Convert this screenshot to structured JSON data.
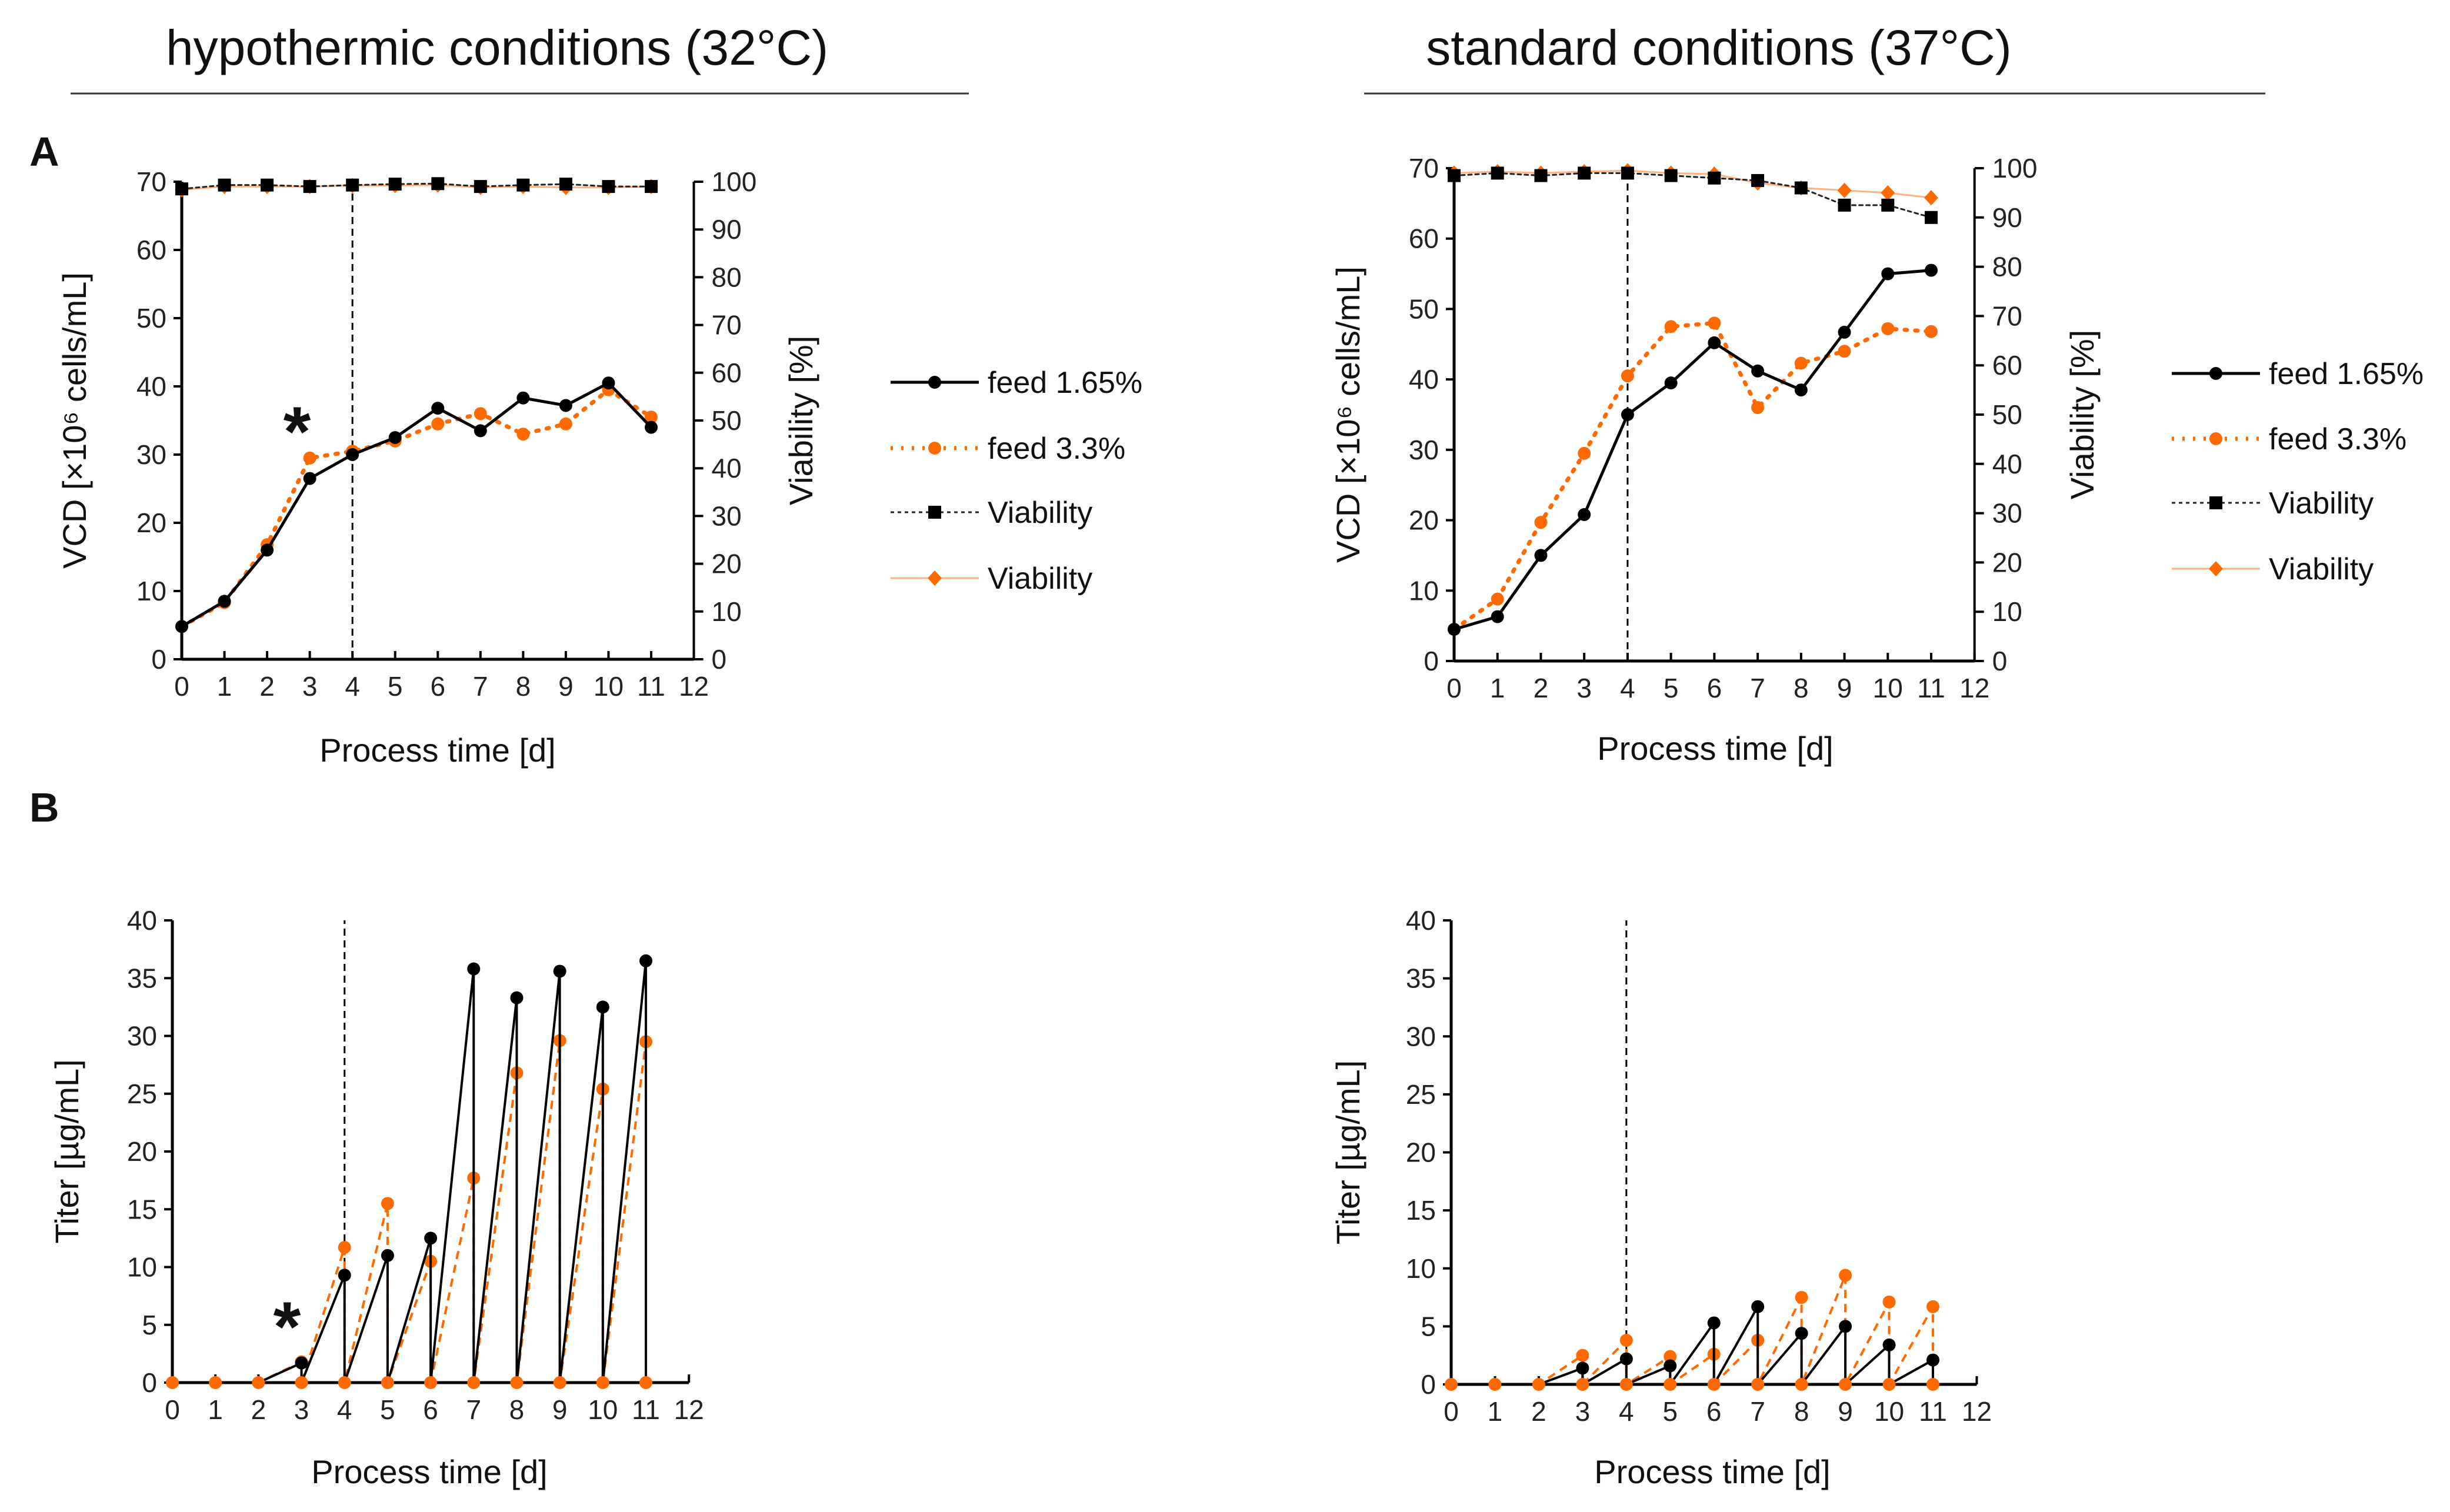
{
  "titles": {
    "left": "hypothermic conditions (32°C)",
    "right": "standard conditions (37°C)"
  },
  "panel_labels": {
    "a": "A",
    "b": "B"
  },
  "annotations": {
    "asterisk": "*"
  },
  "legend": [
    "feed 1.65%",
    "feed 3.3%",
    "Viability",
    "Viability"
  ],
  "colors": {
    "black": "#000000",
    "orange": "#ff6a00",
    "light_orange": "#ffb27f"
  },
  "chart_data": [
    {
      "id": "A_left",
      "type": "line",
      "xlabel": "Process time [d]",
      "ylabel": "VCD [×10⁶ cells/mL]",
      "y2label": "Viability [%]",
      "xlim": [
        0,
        12
      ],
      "ylim": [
        0,
        70
      ],
      "y2lim": [
        0,
        100
      ],
      "yticks": [
        0,
        10,
        20,
        30,
        40,
        50,
        60,
        70
      ],
      "y2ticks": [
        0,
        10,
        20,
        30,
        40,
        50,
        60,
        70,
        80,
        90,
        100
      ],
      "x": [
        0,
        1,
        2,
        3,
        4,
        5,
        6,
        7,
        8,
        9,
        10,
        11
      ],
      "vline_x": 4,
      "series": [
        {
          "name": "feed 1.65%",
          "axis": "left",
          "values": [
            4.8,
            8.5,
            16,
            26.5,
            30,
            32.5,
            36.8,
            33.5,
            38.3,
            37.2,
            40.5,
            34
          ]
        },
        {
          "name": "feed 3.3%",
          "axis": "left",
          "values": [
            4.8,
            8.3,
            16.8,
            29.5,
            30.5,
            32,
            34.5,
            36,
            33,
            34.5,
            39.5,
            35.5
          ]
        },
        {
          "name": "Viability",
          "axis": "right",
          "values": [
            98.5,
            99.3,
            99.3,
            99,
            99.3,
            99.5,
            99.6,
            99,
            99.3,
            99.5,
            99,
            99
          ]
        },
        {
          "name": "Viability",
          "axis": "right",
          "values": [
            98.3,
            99,
            99,
            99,
            99.2,
            99.2,
            99.3,
            98.8,
            99,
            98.8,
            98.8,
            99
          ]
        }
      ]
    },
    {
      "id": "A_right",
      "type": "line",
      "xlabel": "Process time [d]",
      "ylabel": "VCD [×10⁶ cells/mL]",
      "y2label": "Viability [%]",
      "xlim": [
        0,
        12
      ],
      "ylim": [
        0,
        70
      ],
      "y2lim": [
        0,
        100
      ],
      "yticks": [
        0,
        10,
        20,
        30,
        40,
        50,
        60,
        70
      ],
      "y2ticks": [
        0,
        10,
        20,
        30,
        40,
        50,
        60,
        70,
        80,
        90,
        100
      ],
      "x": [
        0,
        1,
        2,
        3,
        4,
        5,
        6,
        7,
        8,
        9,
        10,
        11
      ],
      "vline_x": 4,
      "series": [
        {
          "name": "feed 1.65%",
          "axis": "left",
          "values": [
            4.5,
            6.3,
            15,
            20.8,
            35,
            39.5,
            45.2,
            41.2,
            38.5,
            46.7,
            55,
            55.5
          ]
        },
        {
          "name": "feed 3.3%",
          "axis": "left",
          "values": [
            4.5,
            8.8,
            19.7,
            29.5,
            40.5,
            47.5,
            48,
            36,
            42.3,
            44,
            47.2,
            46.8
          ]
        },
        {
          "name": "Viability",
          "axis": "right",
          "values": [
            98.5,
            99,
            98.5,
            99,
            99,
            98.5,
            98,
            97.5,
            96,
            92.5,
            92.5,
            90
          ]
        },
        {
          "name": "Viability",
          "axis": "right",
          "values": [
            99,
            99.3,
            99,
            99.3,
            99.5,
            99,
            98.8,
            97,
            96,
            95.5,
            95,
            94
          ]
        }
      ]
    },
    {
      "id": "B_left",
      "type": "line",
      "xlabel": "Process time [d]",
      "ylabel": "Titer [µg/mL]",
      "xlim": [
        0,
        12
      ],
      "ylim": [
        0,
        40
      ],
      "yticks": [
        0,
        5,
        10,
        15,
        20,
        25,
        30,
        35,
        40
      ],
      "x": [
        0,
        1,
        2,
        3,
        4,
        5,
        6,
        7,
        8,
        9,
        10,
        11
      ],
      "vline_x": 4,
      "note": "sawtooth: value before medium exchange, then 0 after",
      "series": [
        {
          "name": "feed 1.65%",
          "values": [
            0,
            0,
            0,
            1.7,
            9.3,
            11,
            12.5,
            35.8,
            33.3,
            35.6,
            32.5,
            36.5
          ]
        },
        {
          "name": "feed 3.3%",
          "values": [
            0,
            0,
            0,
            1.8,
            11.7,
            15.5,
            10.5,
            17.7,
            26.8,
            29.6,
            25.4,
            29.5
          ]
        }
      ]
    },
    {
      "id": "B_right",
      "type": "line",
      "xlabel": "Process time [d]",
      "ylabel": "Titer [µg/mL]",
      "xlim": [
        0,
        12
      ],
      "ylim": [
        0,
        40
      ],
      "yticks": [
        0,
        5,
        10,
        15,
        20,
        25,
        30,
        35,
        40
      ],
      "x": [
        0,
        1,
        2,
        3,
        4,
        5,
        6,
        7,
        8,
        9,
        10,
        11
      ],
      "vline_x": 4,
      "series": [
        {
          "name": "feed 1.65%",
          "values": [
            0,
            0,
            0,
            1.4,
            2.2,
            1.6,
            5.3,
            6.7,
            4.4,
            5,
            3.4,
            2.1
          ]
        },
        {
          "name": "feed 3.3%",
          "values": [
            0,
            0,
            0,
            2.5,
            3.8,
            2.4,
            2.6,
            3.8,
            7.5,
            9.4,
            7.1,
            6.7
          ]
        }
      ]
    }
  ]
}
